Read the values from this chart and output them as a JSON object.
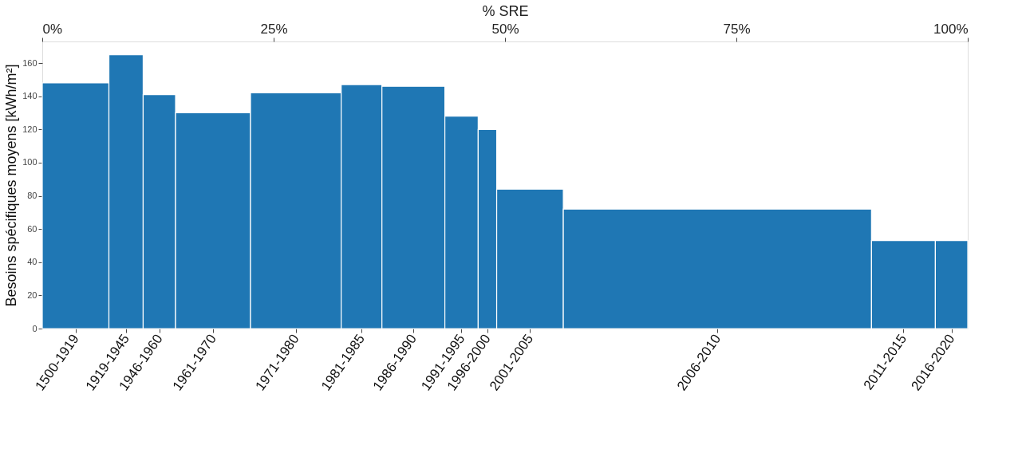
{
  "chart_data": {
    "type": "histogram",
    "ylabel": "Besoins spécifiques moyens [kWh/m²]",
    "xlabel": "% SRE",
    "categories": [
      "1500-1919",
      "1919-1945",
      "1946-1960",
      "1961-1970",
      "1971-1980",
      "1981-1985",
      "1986-1990",
      "1991-1995",
      "1996-2000",
      "2001-2005",
      "2006-2010",
      "2011-2015",
      "2016-2020"
    ],
    "bins": [
      0,
      7.2,
      10.9,
      14.4,
      22.5,
      32.3,
      36.7,
      43.5,
      47.1,
      49.1,
      56.3,
      89.6,
      96.5,
      100
    ],
    "values": [
      148,
      165,
      141,
      130,
      142,
      147,
      146,
      128,
      120,
      84,
      72,
      53,
      53
    ],
    "color": "#1f77b4",
    "xlim": [
      0,
      100
    ],
    "xticks": [
      {
        "value": 0,
        "label": "0%"
      },
      {
        "value": 25,
        "label": "25%"
      },
      {
        "value": 50,
        "label": "50%"
      },
      {
        "value": 75,
        "label": "75%"
      },
      {
        "value": 100,
        "label": "100%"
      }
    ],
    "ylim": [
      0,
      173
    ],
    "yticks": [
      0,
      20,
      40,
      60,
      80,
      100,
      120,
      140,
      160
    ],
    "grid": false
  }
}
